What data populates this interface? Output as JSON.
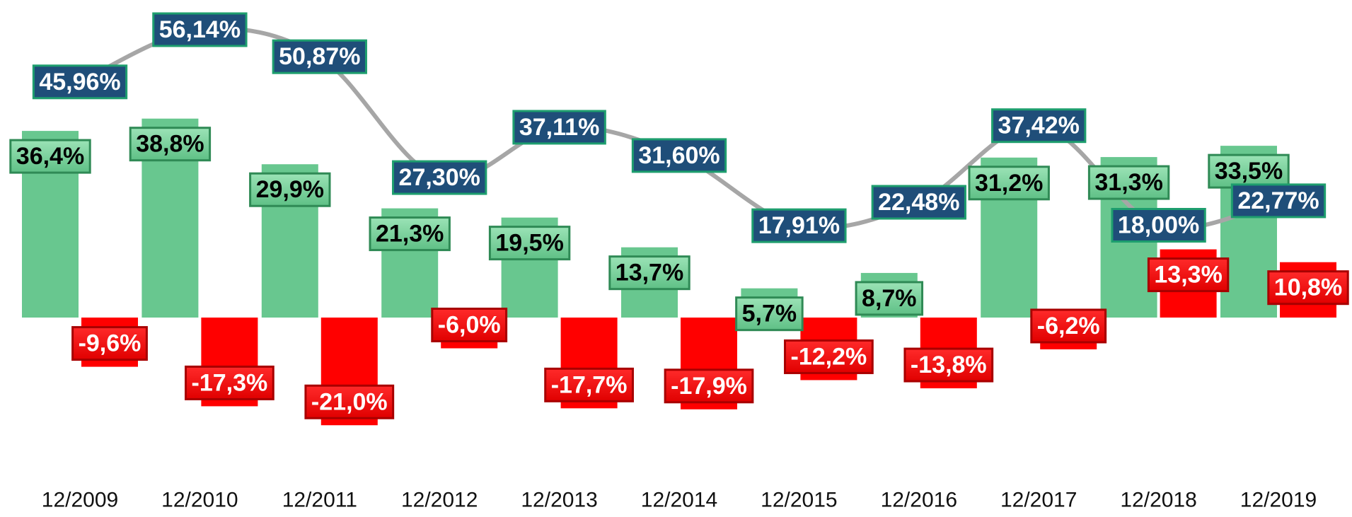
{
  "chart_data": {
    "type": "bar",
    "categories": [
      "12/2009",
      "12/2010",
      "12/2011",
      "12/2012",
      "12/2013",
      "12/2014",
      "12/2015",
      "12/2016",
      "12/2017",
      "12/2018",
      "12/2019"
    ],
    "series": [
      {
        "color": "#68c78f",
        "values": [
          36.4,
          38.8,
          29.9,
          21.3,
          19.5,
          13.7,
          5.7,
          8.7,
          31.2,
          31.3,
          33.5
        ],
        "value_labels": [
          "36,4%",
          "38,8%",
          "29,9%",
          "21,3%",
          "19,5%",
          "13,7%",
          "5,7%",
          "8,7%",
          "31,2%",
          "31,3%",
          "33,5%"
        ]
      },
      {
        "color": "#ff0000",
        "values": [
          -9.6,
          -17.3,
          -21.0,
          -6.0,
          -17.7,
          -17.9,
          -12.2,
          -13.8,
          -6.2,
          13.3,
          10.8
        ],
        "value_labels": [
          "-9,6%",
          "-17,3%",
          "-21,0%",
          "-6,0%",
          "-17,7%",
          "-17,9%",
          "-12,2%",
          "-13,8%",
          "-6,2%",
          "13,3%",
          "10,8%"
        ]
      },
      {
        "type": "line",
        "color": "#a6a6a6",
        "values": [
          45.96,
          56.14,
          50.87,
          27.3,
          37.11,
          31.6,
          17.91,
          22.48,
          37.42,
          18.0,
          22.77
        ],
        "value_labels": [
          "45,96%",
          "56,14%",
          "50,87%",
          "27,30%",
          "37,11%",
          "31,60%",
          "17,91%",
          "22,48%",
          "37,42%",
          "18,00%",
          "22,77%"
        ]
      }
    ]
  }
}
